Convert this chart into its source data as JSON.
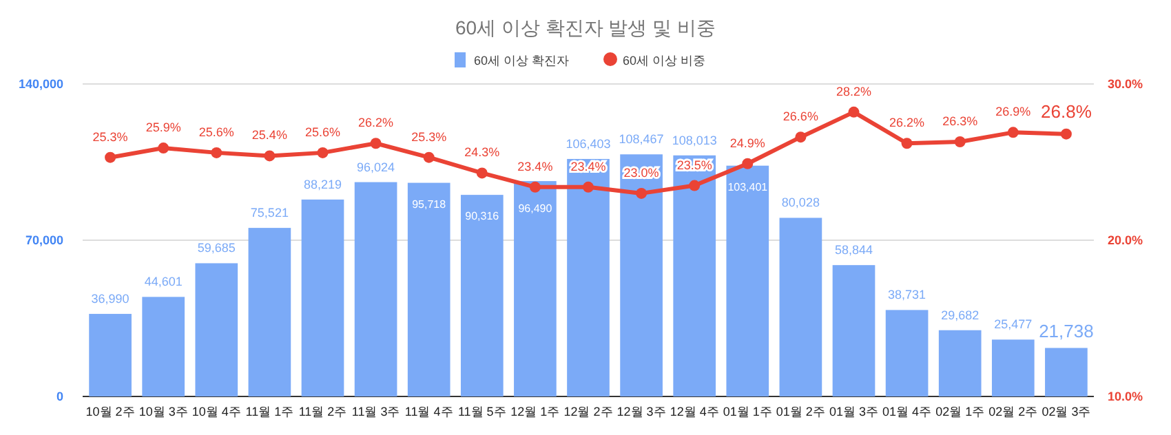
{
  "chart_data": {
    "type": "bar",
    "title": "60세 이상 확진자 발생 및 비중",
    "categories": [
      "10월 2주",
      "10월 3주",
      "10월 4주",
      "11월 1주",
      "11월 2주",
      "11월 3주",
      "11월 4주",
      "11월 5주",
      "12월 1주",
      "12월 2주",
      "12월 3주",
      "12월 4주",
      "01월 1주",
      "01월 2주",
      "01월 3주",
      "01월 4주",
      "02월 1주",
      "02월 2주",
      "02월 3주"
    ],
    "series": [
      {
        "name": "60세 이상 확진자",
        "color": "#7baaf7",
        "values": [
          36990,
          44601,
          59685,
          75521,
          88219,
          96024,
          95718,
          90316,
          96490,
          106403,
          108467,
          108013,
          103401,
          80028,
          58844,
          38731,
          29682,
          25477,
          21738
        ],
        "value_labels": [
          "36,990",
          "44,601",
          "59,685",
          "75,521",
          "88,219",
          "96,024",
          "95,718",
          "90,316",
          "96,490",
          "106,403",
          "108,467",
          "108,013",
          "103,401",
          "80,028",
          "58,844",
          "38,731",
          "29,682",
          "25,477",
          "21,738"
        ]
      },
      {
        "name": "60세 이상 비중",
        "type": "line",
        "axis": "y2",
        "color": "#ea4335",
        "marker": "circle",
        "values": [
          25.3,
          25.9,
          25.6,
          25.4,
          25.6,
          26.2,
          25.3,
          24.3,
          23.4,
          23.4,
          23.0,
          23.5,
          24.9,
          26.6,
          28.2,
          26.2,
          26.3,
          26.9,
          26.8
        ],
        "value_labels": [
          "25.3%",
          "25.9%",
          "25.6%",
          "25.4%",
          "25.6%",
          "26.2%",
          "25.3%",
          "24.3%",
          "23.4%",
          "23.4%",
          "23.0%",
          "23.5%",
          "24.9%",
          "26.6%",
          "28.2%",
          "26.2%",
          "26.3%",
          "26.9%",
          "26.8%"
        ]
      }
    ],
    "ylim": [
      0,
      140000
    ],
    "yticks": [
      0,
      {
        "value": 70000,
        "label": "70,000"
      },
      {
        "value": 140000,
        "label": "140,000"
      }
    ],
    "y2lim": [
      10,
      30
    ],
    "y2ticks": [
      {
        "value": 10,
        "label": "10.0%"
      },
      {
        "value": 20,
        "label": "20.0%"
      },
      {
        "value": 30,
        "label": "30.0%"
      }
    ],
    "grid": "y",
    "legend": "top"
  }
}
